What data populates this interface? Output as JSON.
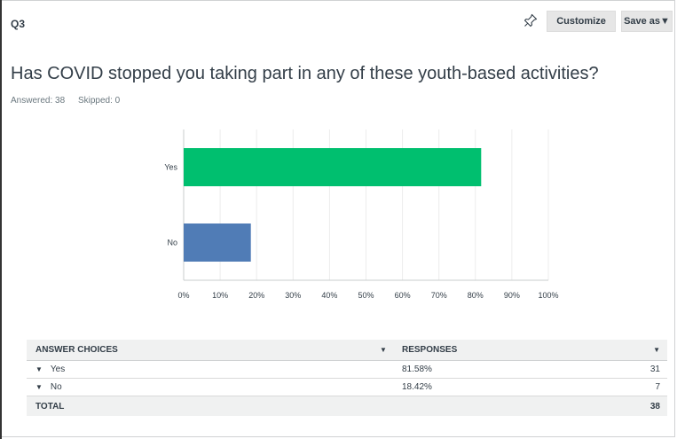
{
  "header": {
    "question_number": "Q3",
    "customize_label": "Customize",
    "save_as_label": "Save as▼"
  },
  "question": {
    "title": "Has COVID stopped you taking part in any of these youth-based activities?",
    "answered": "Answered: 38",
    "skipped": "Skipped: 0"
  },
  "chart_data": {
    "type": "bar",
    "orientation": "horizontal",
    "categories": [
      "Yes",
      "No"
    ],
    "values": [
      81.58,
      18.42
    ],
    "colors": [
      "#00bf6f",
      "#507cb6"
    ],
    "xlim": [
      0,
      100
    ],
    "x_ticks": [
      "0%",
      "10%",
      "20%",
      "30%",
      "40%",
      "50%",
      "60%",
      "70%",
      "80%",
      "90%",
      "100%"
    ],
    "grid": true,
    "title": "",
    "xlabel": "",
    "ylabel": ""
  },
  "table": {
    "headers": [
      "ANSWER CHOICES",
      "RESPONSES"
    ],
    "rows": [
      {
        "choice": "Yes",
        "percent": "81.58%",
        "count": "31"
      },
      {
        "choice": "No",
        "percent": "18.42%",
        "count": "7"
      }
    ],
    "total_label": "TOTAL",
    "total_value": "38"
  },
  "icons": {
    "pin": "pin-icon",
    "sort": "caret-down-icon",
    "expand": "caret-down-icon"
  }
}
